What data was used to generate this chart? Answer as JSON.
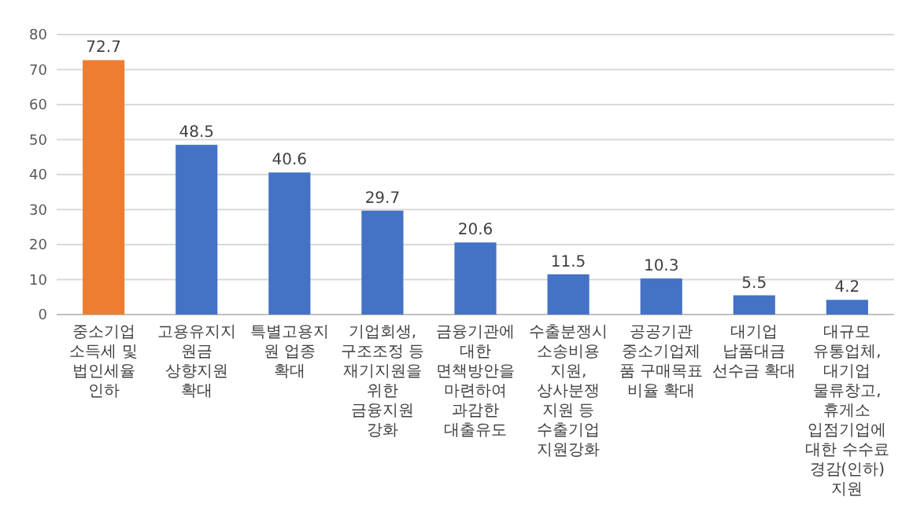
{
  "chart_data": {
    "type": "bar",
    "categories": [
      "중소기업 소득세 및 법인세율 인하",
      "고용유지지원금 상향지원 확대",
      "특별고용지원 업종 확대",
      "기업회생, 구조조정 등 재기지원을 위한 금융지원 강화",
      "금융기관에 대한 면책방안을 마련하여 과감한 대출유도",
      "수출분쟁시 소송비용 지원, 상사분쟁 지원 등 수출기업 지원강화",
      "공공기관 중소기업제품 구매목표 비율 확대",
      "대기업 납품대금 선수금 확대",
      "대규모 유통업체, 대기업 물류창고, 휴게소 입점기업에 대한 수수료 경감(인하) 지원"
    ],
    "values": [
      72.7,
      48.5,
      40.6,
      29.7,
      20.6,
      11.5,
      10.3,
      5.5,
      4.2
    ],
    "colors": [
      "#ed7d31",
      "#4472c4",
      "#4472c4",
      "#4472c4",
      "#4472c4",
      "#4472c4",
      "#4472c4",
      "#4472c4",
      "#4472c4"
    ],
    "ylim": [
      0,
      80
    ],
    "yticks": [
      0,
      10,
      20,
      30,
      40,
      50,
      60,
      70,
      80
    ],
    "grid": "y",
    "data_labels": true
  }
}
